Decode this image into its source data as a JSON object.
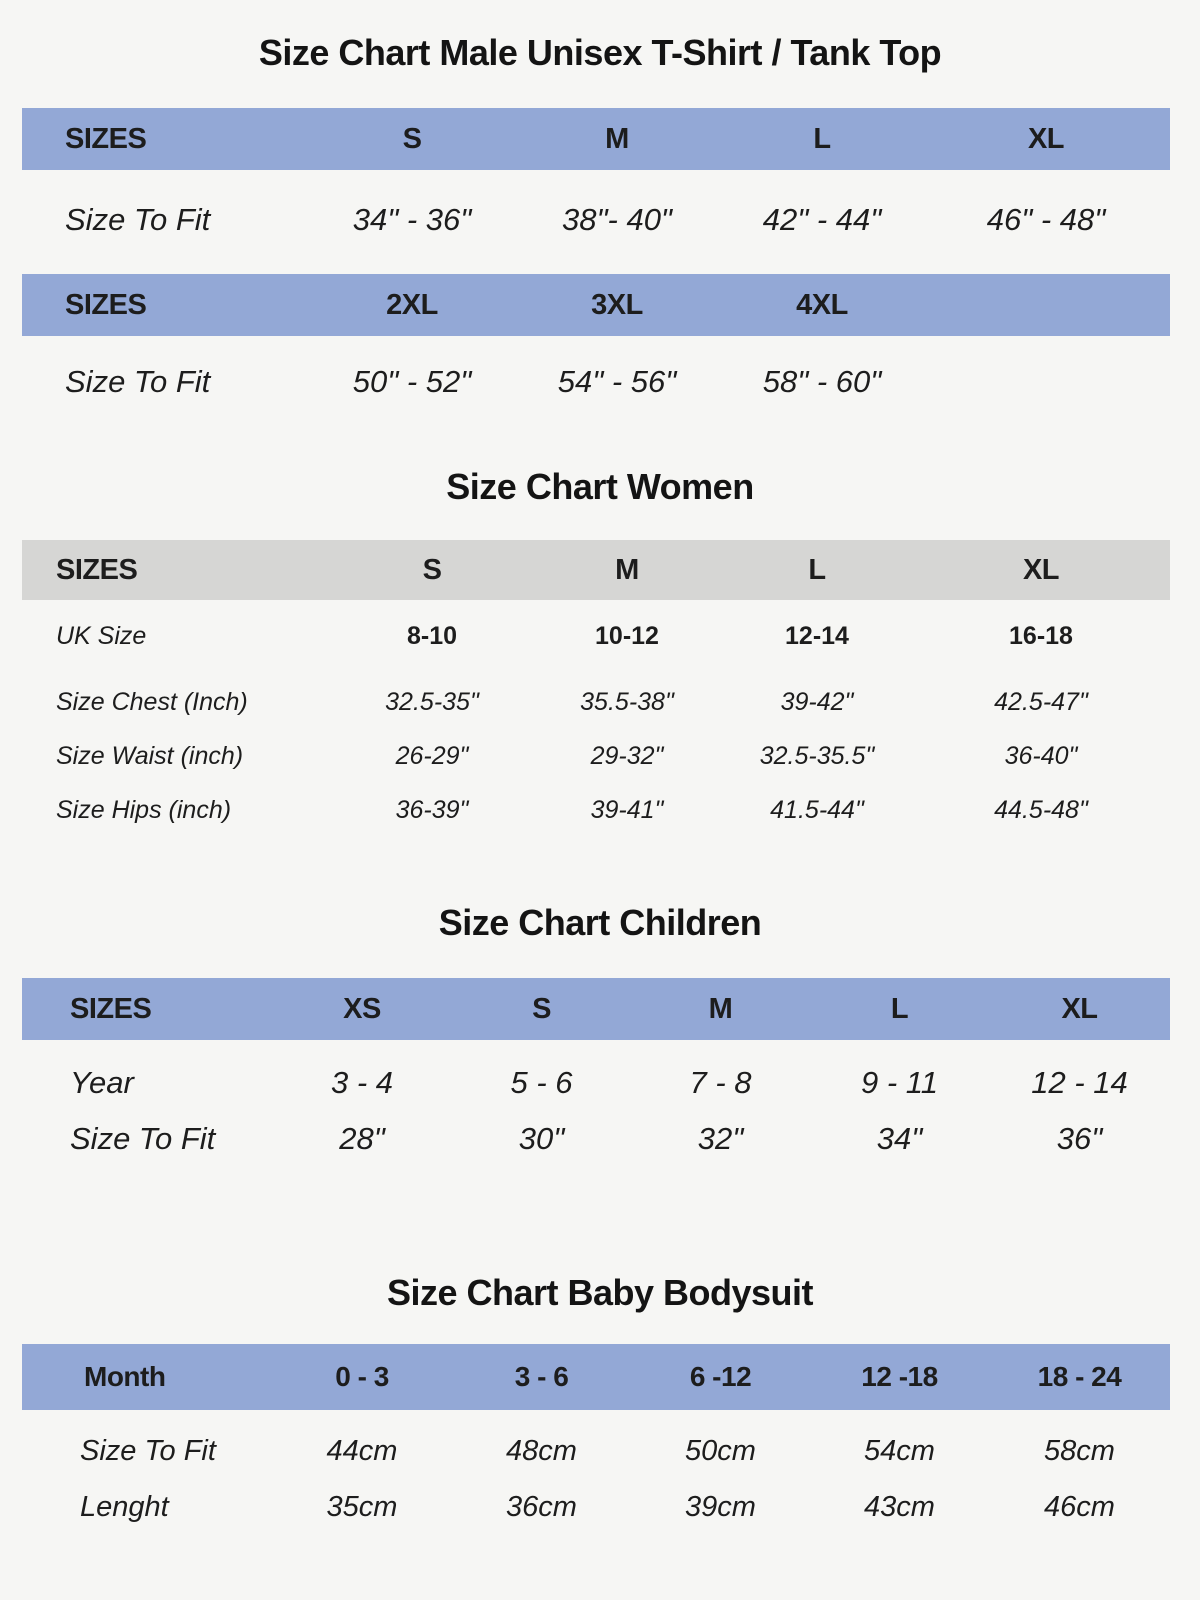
{
  "colors": {
    "band_blue": "#93a8d6",
    "band_gray": "#d6d6d4",
    "background": "#f6f6f4",
    "text": "#1d1d1d"
  },
  "male": {
    "title": "Size Chart Male Unisex T-Shirt / Tank Top",
    "band1": {
      "label": "SIZES",
      "cols": [
        "S",
        "M",
        "L",
        "XL"
      ]
    },
    "fit1": {
      "label": "Size To Fit",
      "values": [
        "34\" - 36\"",
        "38\"- 40\"",
        "42\" - 44\"",
        "46\" - 48\""
      ]
    },
    "band2": {
      "label": "SIZES",
      "cols": [
        "2XL",
        "3XL",
        "4XL"
      ]
    },
    "fit2": {
      "label": "Size To Fit",
      "values": [
        "50\" - 52\"",
        "54\" - 56\"",
        "58\" - 60\""
      ]
    }
  },
  "women": {
    "title": "Size Chart Women",
    "band": {
      "label": "SIZES",
      "cols": [
        "S",
        "M",
        "L",
        "XL"
      ]
    },
    "uk": {
      "label": "UK Size",
      "values": [
        "8-10",
        "10-12",
        "12-14",
        "16-18"
      ]
    },
    "chest": {
      "label": "Size Chest (Inch)",
      "values": [
        "32.5-35\"",
        "35.5-38\"",
        "39-42\"",
        "42.5-47\""
      ]
    },
    "waist": {
      "label": "Size Waist (inch)",
      "values": [
        "26-29\"",
        "29-32\"",
        "32.5-35.5\"",
        "36-40\""
      ]
    },
    "hips": {
      "label": "Size Hips (inch)",
      "values": [
        "36-39\"",
        "39-41\"",
        "41.5-44\"",
        "44.5-48\""
      ]
    }
  },
  "children": {
    "title": "Size Chart Children",
    "band": {
      "label": "SIZES",
      "cols": [
        "XS",
        "S",
        "M",
        "L",
        "XL"
      ]
    },
    "year": {
      "label": "Year",
      "values": [
        "3 - 4",
        "5 - 6",
        "7 - 8",
        "9 - 11",
        "12 - 14"
      ]
    },
    "fit": {
      "label": "Size To Fit",
      "values": [
        "28\"",
        "30\"",
        "32\"",
        "34\"",
        "36\""
      ]
    }
  },
  "baby": {
    "title": "Size Chart Baby Bodysuit",
    "band": {
      "label": "Month",
      "cols": [
        "0 - 3",
        "3 - 6",
        "6 -12",
        "12 -18",
        "18 - 24"
      ]
    },
    "fit": {
      "label": "Size To Fit",
      "values": [
        "44cm",
        "48cm",
        "50cm",
        "54cm",
        "58cm"
      ]
    },
    "length": {
      "label": "Lenght",
      "values": [
        "35cm",
        "36cm",
        "39cm",
        "43cm",
        "46cm"
      ]
    }
  }
}
